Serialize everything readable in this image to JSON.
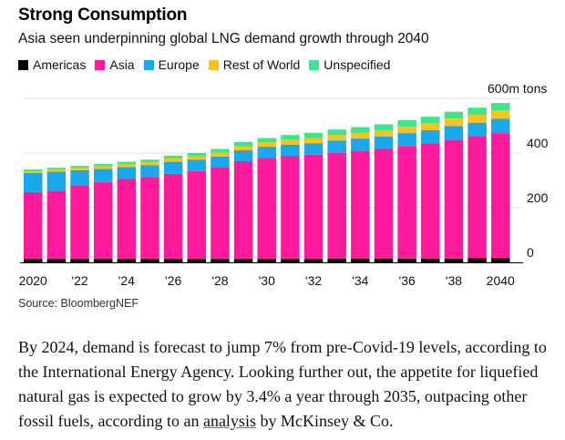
{
  "title": "Strong Consumption",
  "subtitle": "Asia seen underpinning global LNG demand growth through 2040",
  "legend": [
    {
      "label": "Americas",
      "color": "#000000"
    },
    {
      "label": "Asia",
      "color": "#FF1A9C"
    },
    {
      "label": "Europe",
      "color": "#1AA7EC"
    },
    {
      "label": "Rest of World",
      "color": "#F6C21B"
    },
    {
      "label": "Unspecified",
      "color": "#3DE58B"
    }
  ],
  "chart_data": {
    "type": "bar",
    "stacked": true,
    "title": "Strong Consumption",
    "subtitle": "Asia seen underpinning global LNG demand growth through 2040",
    "unit_label": "600m tons",
    "y_ticks": [
      0,
      200,
      400
    ],
    "ylim": [
      0,
      600
    ],
    "categories": [
      "2020",
      "2021",
      "2022",
      "2023",
      "2024",
      "2025",
      "2026",
      "2027",
      "2028",
      "2029",
      "2030",
      "2031",
      "2032",
      "2033",
      "2034",
      "2035",
      "2036",
      "2037",
      "2038",
      "2039",
      "2040"
    ],
    "x_tick_labels": [
      "2020",
      "",
      "'22",
      "",
      "'24",
      "",
      "'26",
      "",
      "'28",
      "",
      "'30",
      "",
      "'32",
      "",
      "'34",
      "",
      "'36",
      "",
      "'38",
      "",
      "2040"
    ],
    "series": [
      {
        "name": "Americas",
        "color": "#000000",
        "values": [
          12,
          12,
          12,
          12,
          12,
          12,
          12,
          12,
          12,
          12,
          12,
          12,
          12,
          13,
          13,
          13,
          14,
          14,
          14,
          15,
          15
        ]
      },
      {
        "name": "Asia",
        "color": "#FF1A9C",
        "values": [
          245,
          248,
          270,
          282,
          293,
          300,
          312,
          322,
          337,
          358,
          370,
          378,
          382,
          388,
          395,
          402,
          412,
          422,
          435,
          445,
          458
        ]
      },
      {
        "name": "Europe",
        "color": "#1AA7EC",
        "values": [
          70,
          72,
          55,
          48,
          44,
          43,
          44,
          41,
          38,
          40,
          41,
          41,
          42,
          45,
          45,
          46,
          47,
          48,
          50,
          51,
          52
        ]
      },
      {
        "name": "Rest of World",
        "color": "#F6C21B",
        "values": [
          8,
          8,
          9,
          10,
          10,
          11,
          12,
          13,
          14,
          15,
          16,
          18,
          19,
          20,
          21,
          22,
          24,
          25,
          27,
          29,
          31
        ]
      },
      {
        "name": "Unspecified",
        "color": "#3DE58B",
        "values": [
          5,
          6,
          7,
          8,
          9,
          10,
          11,
          12,
          14,
          15,
          16,
          17,
          19,
          20,
          21,
          22,
          23,
          24,
          25,
          26,
          27
        ]
      }
    ]
  },
  "source": "Source: BloombergNEF",
  "body": {
    "text_before": "By 2024, demand is forecast to jump 7% from pre-Covid-19 levels, according to the International Energy Agency. Looking further out, the appetite for liquefied natural gas is expected to grow by 3.4% a year through 2035, outpacing other fossil fuels, according to an ",
    "link_text": "analysis",
    "text_after": " by McKinsey & Co."
  }
}
